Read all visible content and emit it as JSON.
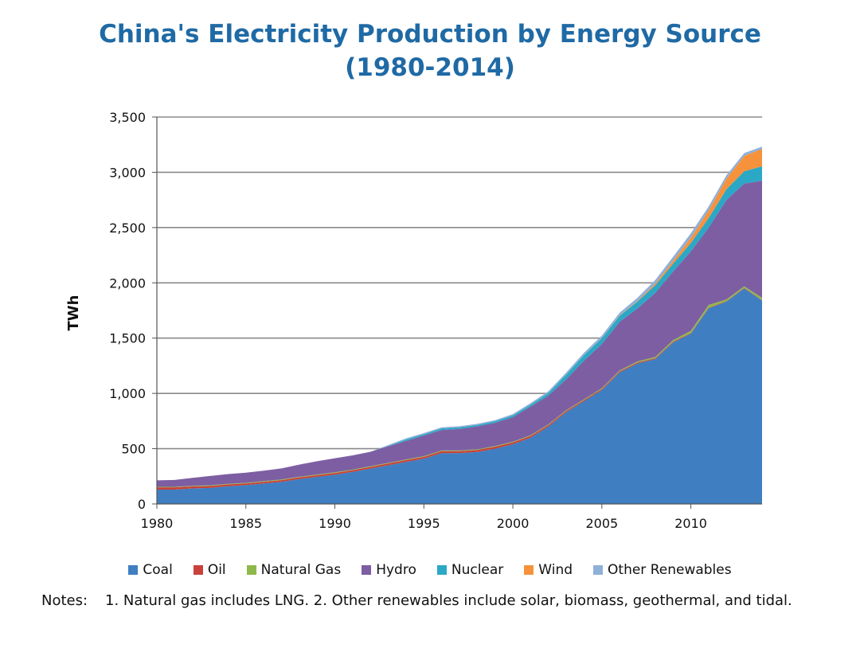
{
  "chart_data": {
    "type": "area",
    "stacked": true,
    "title": "China's Electricity Production by Energy Source",
    "subtitle": "(1980-2014)",
    "xlabel": "",
    "ylabel": "TWh",
    "xlim": [
      1980,
      2014
    ],
    "ylim": [
      0,
      3500
    ],
    "xticks": [
      1980,
      1985,
      1990,
      1995,
      2000,
      2005,
      2010
    ],
    "yticks": [
      0,
      500,
      1000,
      1500,
      2000,
      2500,
      3000,
      3500
    ],
    "ytick_labels": [
      "0",
      "500",
      "1,000",
      "1,500",
      "2,000",
      "2,500",
      "3,000",
      "3,500"
    ],
    "grid": "horizontal",
    "legend_position": "bottom",
    "x": [
      1980,
      1981,
      1982,
      1983,
      1984,
      1985,
      1986,
      1987,
      1988,
      1989,
      1990,
      1991,
      1992,
      1993,
      1994,
      1995,
      1996,
      1997,
      1998,
      1999,
      2000,
      2001,
      2002,
      2003,
      2004,
      2005,
      2006,
      2007,
      2008,
      2009,
      2010,
      2011,
      2012,
      2013,
      2014
    ],
    "series": [
      {
        "name": "Coal",
        "color": "#3f7fc1",
        "values": [
          130,
          130,
          140,
          145,
          160,
          170,
          185,
          200,
          225,
          245,
          265,
          290,
          320,
          350,
          380,
          410,
          460,
          460,
          470,
          500,
          540,
          600,
          700,
          830,
          930,
          1030,
          1190,
          1270,
          1310,
          1460,
          1540,
          1770,
          1830,
          1950,
          1840
        ]
      },
      {
        "name": "Oil",
        "color": "#c9413a",
        "values": [
          20,
          20,
          18,
          17,
          16,
          15,
          15,
          15,
          15,
          15,
          15,
          15,
          15,
          16,
          16,
          16,
          17,
          17,
          18,
          18,
          17,
          15,
          14,
          12,
          11,
          10,
          10,
          9,
          8,
          7,
          6,
          5,
          5,
          4,
          4
        ]
      },
      {
        "name": "Natural Gas",
        "color": "#8fb84a",
        "values": [
          5,
          5,
          6,
          6,
          6,
          6,
          6,
          6,
          6,
          6,
          6,
          6,
          6,
          6,
          6,
          6,
          6,
          6,
          6,
          6,
          6,
          6,
          6,
          6,
          6,
          7,
          8,
          10,
          12,
          15,
          20,
          25,
          15,
          15,
          20
        ]
      },
      {
        "name": "Hydro",
        "color": "#7d5ea3",
        "values": [
          58,
          62,
          72,
          85,
          88,
          92,
          95,
          100,
          110,
          120,
          127,
          128,
          131,
          150,
          168,
          187,
          186,
          196,
          208,
          210,
          222,
          260,
          260,
          280,
          350,
          400,
          440,
          480,
          580,
          620,
          720,
          700,
          900,
          930,
          1060
        ]
      },
      {
        "name": "Nuclear",
        "color": "#2ba8c6",
        "values": [
          0,
          0,
          0,
          0,
          0,
          0,
          0,
          0,
          0,
          0,
          0,
          0,
          0,
          3,
          13,
          12,
          14,
          14,
          13,
          14,
          16,
          17,
          24,
          42,
          50,
          52,
          54,
          62,
          68,
          70,
          74,
          86,
          97,
          110,
          130
        ]
      },
      {
        "name": "Wind",
        "color": "#f7923c",
        "values": [
          0,
          0,
          0,
          0,
          0,
          0,
          0,
          0,
          0,
          0,
          0,
          0,
          0,
          0,
          0,
          0,
          0,
          0,
          0,
          0,
          0,
          0,
          0,
          1,
          1,
          2,
          4,
          6,
          15,
          27,
          49,
          70,
          96,
          140,
          158
        ]
      },
      {
        "name": "Other Renewables",
        "color": "#8fb0d8",
        "values": [
          0,
          0,
          0,
          0,
          0,
          0,
          0,
          0,
          0,
          0,
          0,
          0,
          0,
          8,
          10,
          10,
          10,
          10,
          10,
          10,
          12,
          14,
          16,
          18,
          20,
          22,
          24,
          28,
          32,
          36,
          40,
          35,
          30,
          25,
          20
        ]
      }
    ]
  },
  "notes": {
    "label": "Notes:",
    "text": "1. Natural gas includes LNG. 2. Other renewables include solar, biomass, geothermal, and tidal."
  }
}
